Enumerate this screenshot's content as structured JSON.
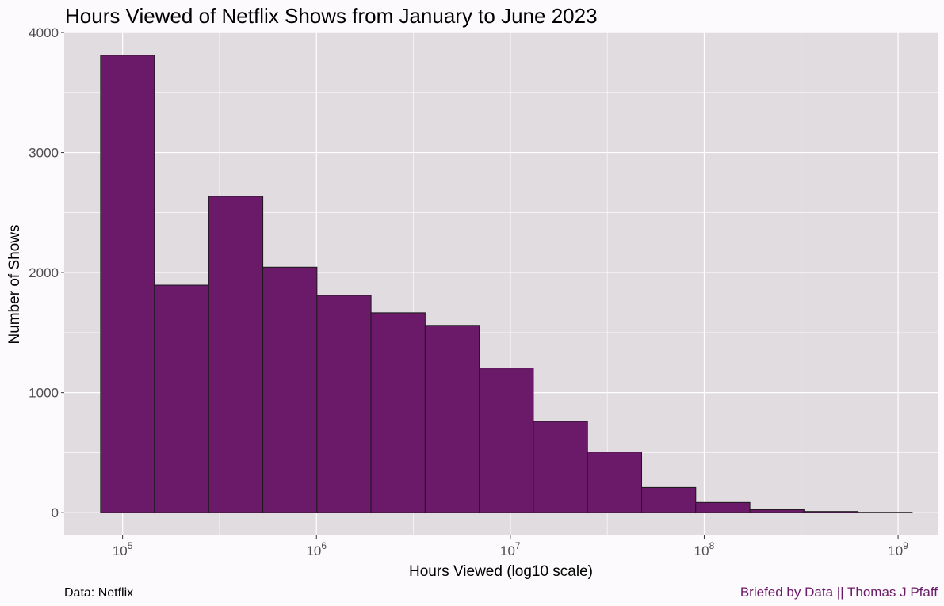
{
  "chart_data": {
    "type": "bar",
    "title": "Hours Viewed of Netflix Shows from January to June 2023",
    "xlabel": "Hours Viewed (log10 scale)",
    "ylabel": "Number of Shows",
    "x_scale": "log10",
    "xlim": [
      50000,
      1600000000
    ],
    "ylim": [
      -190,
      4000
    ],
    "y_ticks": [
      0,
      1000,
      2000,
      3000,
      4000
    ],
    "x_ticks": [
      {
        "base": "10",
        "exp": "5",
        "value": 100000
      },
      {
        "base": "10",
        "exp": "6",
        "value": 1000000
      },
      {
        "base": "10",
        "exp": "7",
        "value": 10000000
      },
      {
        "base": "10",
        "exp": "8",
        "value": 100000000
      },
      {
        "base": "10",
        "exp": "9",
        "value": 1000000000
      }
    ],
    "bins": [
      {
        "x_from": 77000,
        "x_to": 146000,
        "count": 3810
      },
      {
        "x_from": 146000,
        "x_to": 278000,
        "count": 1895
      },
      {
        "x_from": 278000,
        "x_to": 529000,
        "count": 2635
      },
      {
        "x_from": 529000,
        "x_to": 1006000,
        "count": 2045
      },
      {
        "x_from": 1006000,
        "x_to": 1912000,
        "count": 1810
      },
      {
        "x_from": 1912000,
        "x_to": 3636000,
        "count": 1665
      },
      {
        "x_from": 3636000,
        "x_to": 6914000,
        "count": 1560
      },
      {
        "x_from": 6914000,
        "x_to": 13150000,
        "count": 1205
      },
      {
        "x_from": 13150000,
        "x_to": 25010000,
        "count": 760
      },
      {
        "x_from": 25010000,
        "x_to": 47560000,
        "count": 505
      },
      {
        "x_from": 47560000,
        "x_to": 90450000,
        "count": 210
      },
      {
        "x_from": 90450000,
        "x_to": 172000000,
        "count": 85
      },
      {
        "x_from": 172000000,
        "x_to": 327100000,
        "count": 25
      },
      {
        "x_from": 327100000,
        "x_to": 622000000,
        "count": 10
      },
      {
        "x_from": 622000000,
        "x_to": 1183000000,
        "count": 3
      }
    ],
    "grid": true,
    "legend": "none",
    "colors": {
      "bar_fill": "#6a1a68",
      "bar_stroke": "#1a1a1a",
      "panel_bg": "#e0dce0",
      "grid_line": "#ffffff",
      "page_bg": "#fcfafc",
      "tick_text": "#4d4d4d",
      "credit_text": "#6a1a68"
    }
  },
  "caption": {
    "source": "Data: Netflix",
    "credit": "Briefed by Data || Thomas J Pfaff"
  }
}
